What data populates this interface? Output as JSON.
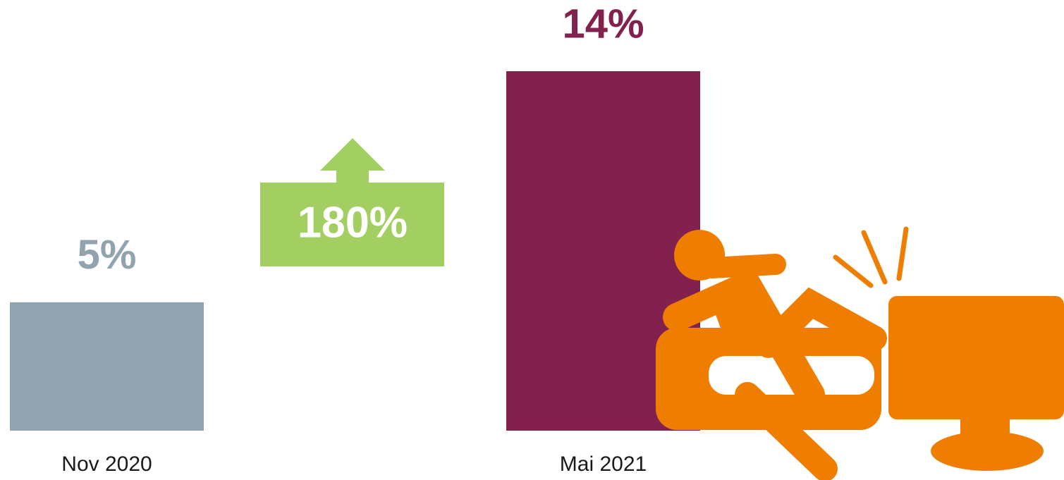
{
  "chart_data": {
    "type": "bar",
    "categories": [
      "Nov 2020",
      "Mai 2021"
    ],
    "values": [
      5,
      14
    ],
    "value_labels": [
      "5%",
      "14%"
    ],
    "colors": [
      "#91a3ae",
      "#82214e"
    ],
    "annotation": {
      "text": "180%",
      "color": "#a3cf62"
    }
  }
}
